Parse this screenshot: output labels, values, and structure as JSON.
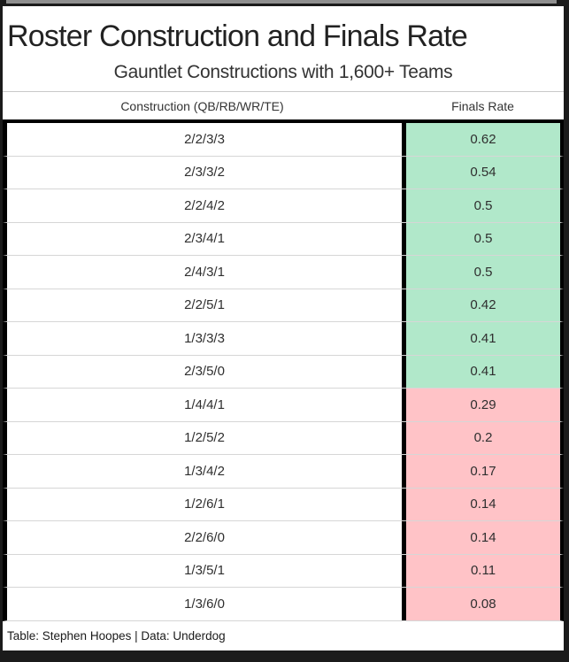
{
  "chart_data": {
    "type": "table",
    "title": "Roster Construction and Finals Rate",
    "subtitle": "Gauntlet Constructions with 1,600+ Teams",
    "columns": [
      "Construction (QB/RB/WR/TE)",
      "Finals Rate"
    ],
    "rows": [
      {
        "construction": "2/2/3/3",
        "finals_rate": "0.62",
        "tone": "positive"
      },
      {
        "construction": "2/3/3/2",
        "finals_rate": "0.54",
        "tone": "positive"
      },
      {
        "construction": "2/2/4/2",
        "finals_rate": "0.5",
        "tone": "positive"
      },
      {
        "construction": "2/3/4/1",
        "finals_rate": "0.5",
        "tone": "positive"
      },
      {
        "construction": "2/4/3/1",
        "finals_rate": "0.5",
        "tone": "positive"
      },
      {
        "construction": "2/2/5/1",
        "finals_rate": "0.42",
        "tone": "positive"
      },
      {
        "construction": "1/3/3/3",
        "finals_rate": "0.41",
        "tone": "positive"
      },
      {
        "construction": "2/3/5/0",
        "finals_rate": "0.41",
        "tone": "positive"
      },
      {
        "construction": "1/4/4/1",
        "finals_rate": "0.29",
        "tone": "negative"
      },
      {
        "construction": "1/2/5/2",
        "finals_rate": "0.2",
        "tone": "negative"
      },
      {
        "construction": "1/3/4/2",
        "finals_rate": "0.17",
        "tone": "negative"
      },
      {
        "construction": "1/2/6/1",
        "finals_rate": "0.14",
        "tone": "negative"
      },
      {
        "construction": "2/2/6/0",
        "finals_rate": "0.14",
        "tone": "negative"
      },
      {
        "construction": "1/3/5/1",
        "finals_rate": "0.11",
        "tone": "negative"
      },
      {
        "construction": "1/3/6/0",
        "finals_rate": "0.08",
        "tone": "negative"
      }
    ],
    "layout_hints": {
      "positive_color": "#b1e8ca",
      "negative_color": "#ffc3c7",
      "positive_rows": "finals rate 0.41 and above",
      "negative_rows": "finals rate 0.29 and below"
    }
  },
  "footer": {
    "credit": "Table: Stephen Hoopes | Data: Underdog"
  }
}
